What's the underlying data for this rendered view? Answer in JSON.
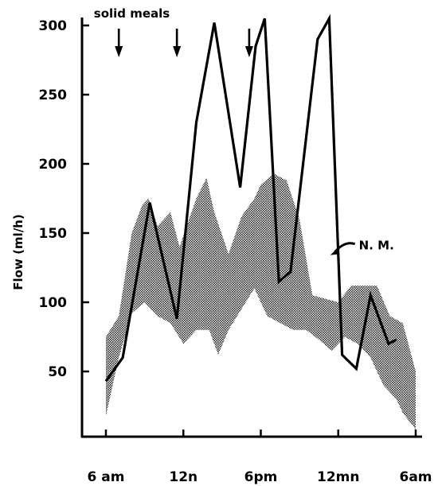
{
  "chart_data": {
    "type": "area",
    "title": "",
    "xlabel": "",
    "ylabel": "Flow (ml/h)",
    "x_unit": "hours after 6 am",
    "xlim": [
      0,
      24
    ],
    "ylim": [
      0,
      310
    ],
    "x_ticks": [
      {
        "x": 0,
        "label": "6 am"
      },
      {
        "x": 6,
        "label": "12n"
      },
      {
        "x": 12,
        "label": "6pm"
      },
      {
        "x": 18,
        "label": "12mn"
      },
      {
        "x": 24,
        "label": "6am"
      }
    ],
    "y_ticks": [
      50,
      100,
      150,
      200,
      250,
      300
    ],
    "grid": false,
    "legend": "none",
    "colors": {
      "line": "#000000",
      "band": "#9a9a9a"
    },
    "band": {
      "upper": [
        [
          0,
          75
        ],
        [
          1,
          90
        ],
        [
          2,
          150
        ],
        [
          2.8,
          170
        ],
        [
          3.3,
          175
        ],
        [
          4,
          155
        ],
        [
          5,
          165
        ],
        [
          5.7,
          140
        ],
        [
          7,
          175
        ],
        [
          7.8,
          190
        ],
        [
          8.4,
          165
        ],
        [
          9.5,
          135
        ],
        [
          10.5,
          162
        ],
        [
          11.5,
          175
        ],
        [
          12,
          185
        ],
        [
          13,
          193
        ],
        [
          14,
          188
        ],
        [
          15,
          160
        ],
        [
          16,
          105
        ],
        [
          18,
          100
        ],
        [
          19,
          112
        ],
        [
          20,
          112
        ],
        [
          21,
          112
        ],
        [
          22,
          90
        ],
        [
          23,
          85
        ],
        [
          24,
          50
        ]
      ],
      "lower": [
        [
          0,
          18
        ],
        [
          1,
          60
        ],
        [
          2,
          92
        ],
        [
          3,
          100
        ],
        [
          4,
          90
        ],
        [
          5,
          85
        ],
        [
          6,
          70
        ],
        [
          7,
          80
        ],
        [
          8,
          80
        ],
        [
          8.7,
          62
        ],
        [
          9.5,
          80
        ],
        [
          10.5,
          95
        ],
        [
          11.5,
          110
        ],
        [
          12.5,
          90
        ],
        [
          13.5,
          85
        ],
        [
          14.5,
          80
        ],
        [
          15.5,
          80
        ],
        [
          16.5,
          73
        ],
        [
          17.5,
          65
        ],
        [
          18.5,
          75
        ],
        [
          19.5,
          70
        ],
        [
          20.5,
          60
        ],
        [
          21.5,
          40
        ],
        [
          22.5,
          30
        ],
        [
          23,
          20
        ],
        [
          24,
          8
        ]
      ]
    },
    "series": [
      {
        "name": "N. M.",
        "points": [
          [
            0,
            43
          ],
          [
            1.3,
            60
          ],
          [
            3.4,
            172
          ],
          [
            5.5,
            88
          ],
          [
            7,
            230
          ],
          [
            8.4,
            302
          ],
          [
            10.4,
            183
          ],
          [
            11.6,
            285
          ],
          [
            12.3,
            305
          ],
          [
            13.4,
            115
          ],
          [
            14.3,
            122
          ],
          [
            16.4,
            290
          ],
          [
            17.3,
            305
          ],
          [
            18.3,
            62
          ],
          [
            19.4,
            52
          ],
          [
            20.5,
            105
          ],
          [
            21.9,
            70
          ],
          [
            22.5,
            73
          ]
        ]
      }
    ],
    "annotations": [
      {
        "text": "solid meals",
        "x": 2.5,
        "y": 308
      },
      {
        "text": "N. M.",
        "x": 19.6,
        "y": 141
      }
    ],
    "meal_arrows": [
      1,
      5.5,
      11.1
    ]
  }
}
